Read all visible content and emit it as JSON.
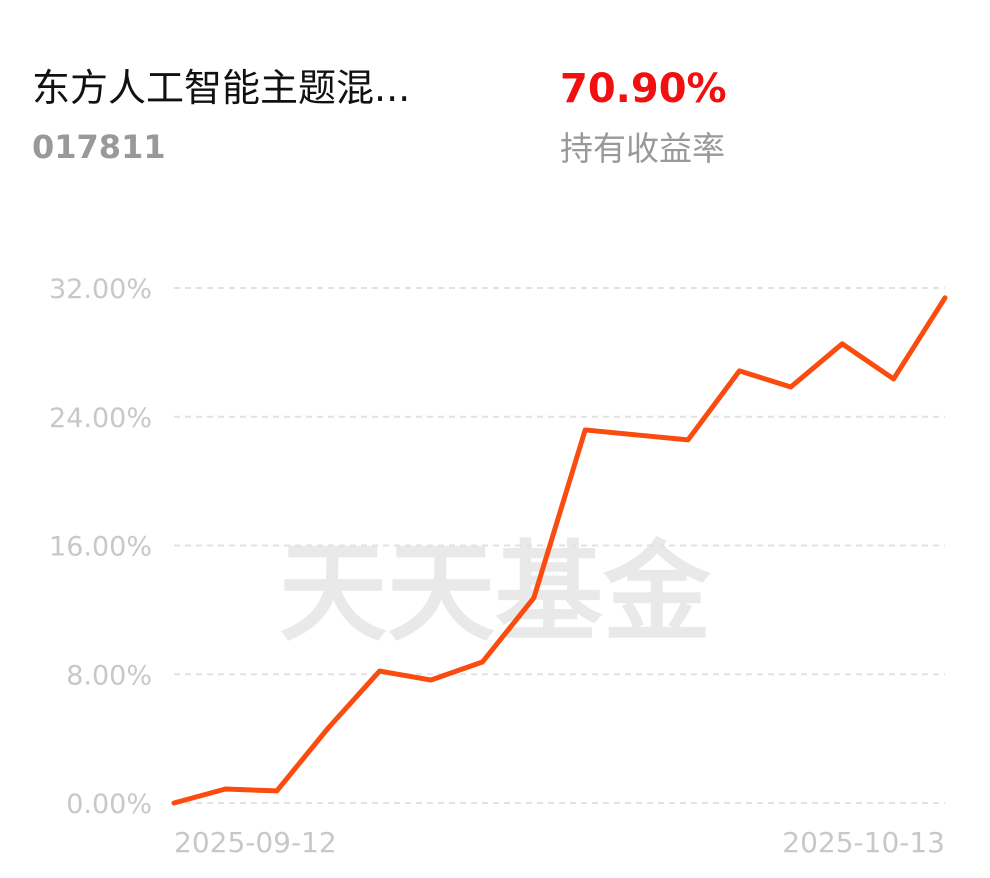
{
  "header": {
    "name": "东方人工智能主题混...",
    "code": "017811",
    "return_value": "70.90%",
    "return_label": "持有收益率"
  },
  "watermark": "天天基金",
  "chart_data": {
    "type": "line",
    "categories": [
      "2025-09-12",
      null,
      null,
      null,
      null,
      null,
      null,
      null,
      null,
      null,
      null,
      null,
      null,
      null,
      null,
      "2025-10-13"
    ],
    "series": [
      {
        "color": "#fa4c0f",
        "values": [
          0,
          0.87,
          0.75,
          4.66,
          8.2,
          7.64,
          8.76,
          12.74,
          23.18,
          22.87,
          22.56,
          26.85,
          25.85,
          28.53,
          26.35,
          31.39
        ]
      }
    ],
    "ylim": [
      0,
      32
    ],
    "yticks": [
      {
        "value": 0,
        "label": "0.00%"
      },
      {
        "value": 8,
        "label": "8.00%"
      },
      {
        "value": 16,
        "label": "16.00%"
      },
      {
        "value": 24,
        "label": "24.00%"
      },
      {
        "value": 32,
        "label": "32.00%"
      }
    ],
    "grid": true
  }
}
